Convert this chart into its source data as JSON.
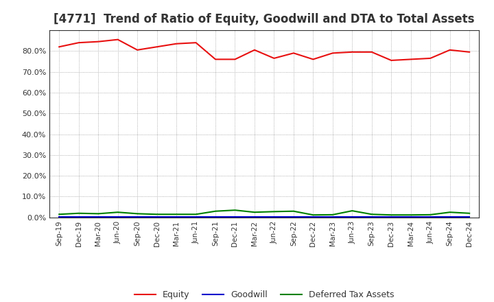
{
  "title": "[4771]  Trend of Ratio of Equity, Goodwill and DTA to Total Assets",
  "x_labels": [
    "Sep-19",
    "Dec-19",
    "Mar-20",
    "Jun-20",
    "Sep-20",
    "Dec-20",
    "Mar-21",
    "Jun-21",
    "Sep-21",
    "Dec-21",
    "Mar-22",
    "Jun-22",
    "Sep-22",
    "Dec-22",
    "Mar-23",
    "Jun-23",
    "Sep-23",
    "Dec-23",
    "Mar-24",
    "Jun-24",
    "Sep-24",
    "Dec-24"
  ],
  "equity": [
    82.0,
    84.0,
    84.5,
    85.5,
    80.5,
    82.0,
    83.5,
    84.0,
    76.0,
    76.0,
    80.5,
    76.5,
    79.0,
    76.0,
    79.0,
    79.5,
    79.5,
    75.5,
    76.0,
    76.5,
    80.5,
    79.5
  ],
  "goodwill": [
    0.1,
    0.1,
    0.1,
    0.1,
    0.1,
    0.1,
    0.1,
    0.1,
    0.1,
    0.1,
    0.1,
    0.1,
    0.1,
    0.1,
    0.1,
    0.1,
    0.1,
    0.1,
    0.1,
    0.1,
    0.1,
    0.1
  ],
  "dta": [
    1.5,
    2.0,
    1.8,
    2.5,
    1.8,
    1.5,
    1.5,
    1.5,
    3.0,
    3.5,
    2.5,
    2.8,
    3.0,
    1.2,
    1.3,
    3.2,
    1.5,
    1.2,
    1.2,
    1.3,
    2.5,
    2.0
  ],
  "equity_color": "#e81010",
  "goodwill_color": "#0000cc",
  "dta_color": "#008000",
  "ylim": [
    0,
    90
  ],
  "yticks": [
    0,
    10,
    20,
    30,
    40,
    50,
    60,
    70,
    80
  ],
  "background_color": "#ffffff",
  "grid_color": "#999999",
  "title_fontsize": 12,
  "title_color": "#333333",
  "legend_labels": [
    "Equity",
    "Goodwill",
    "Deferred Tax Assets"
  ],
  "line_width": 1.5
}
